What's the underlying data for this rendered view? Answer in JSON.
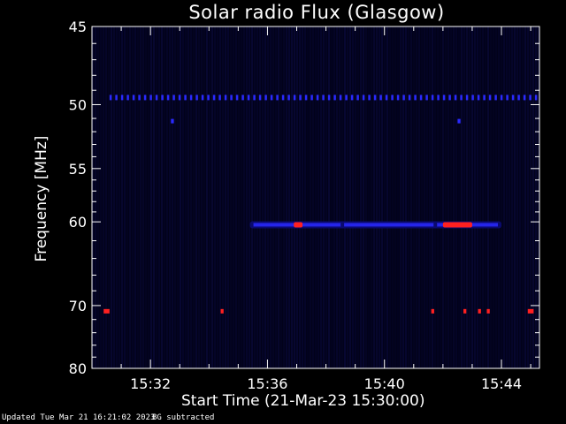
{
  "chart_data": {
    "type": "heatmap",
    "title": "Solar radio Flux (Glasgow)",
    "ylabel": "Frequency [MHz]",
    "xlabel": "Start Time (21-Mar-23 15:30:00)",
    "y_scale": "reciprocal",
    "ylim": [
      45,
      80
    ],
    "y_ticks": [
      "45",
      "50",
      "55",
      "60",
      "70",
      "80"
    ],
    "y_tick_values": [
      45,
      50,
      55,
      60,
      70,
      80
    ],
    "xlim_minutes": [
      0,
      15.3
    ],
    "x_ticks": [
      "15:32",
      "15:36",
      "15:40",
      "15:44"
    ],
    "x_tick_minutes": [
      2,
      6,
      10,
      14
    ],
    "colors": {
      "background": "#02021a",
      "low": "#0a0a6e",
      "medium": "#2a2aff",
      "high": "#ff2020"
    },
    "features": [
      {
        "kind": "band",
        "freq_mhz": 49.5,
        "start_min": 0.6,
        "end_min": 15.2,
        "intensity": "medium"
      },
      {
        "kind": "band",
        "freq_mhz": 60.3,
        "start_min": 5.4,
        "end_min": 14.0,
        "intensity": "medium"
      },
      {
        "kind": "band",
        "freq_mhz": 60.3,
        "start_min": 8.5,
        "end_min": 11.8,
        "intensity": "medium"
      },
      {
        "kind": "burst",
        "freq_mhz": 60.3,
        "start_min": 6.9,
        "end_min": 7.2,
        "intensity": "high"
      },
      {
        "kind": "burst",
        "freq_mhz": 60.3,
        "start_min": 12.0,
        "end_min": 13.0,
        "intensity": "high"
      },
      {
        "kind": "spot",
        "freq_mhz": 51.2,
        "start_min": 2.7,
        "end_min": 2.8,
        "intensity": "medium"
      },
      {
        "kind": "spot",
        "freq_mhz": 51.2,
        "start_min": 12.5,
        "end_min": 12.6,
        "intensity": "medium"
      },
      {
        "kind": "spot",
        "freq_mhz": 70.8,
        "start_min": 0.4,
        "end_min": 0.6,
        "intensity": "high"
      },
      {
        "kind": "spot",
        "freq_mhz": 70.8,
        "start_min": 4.4,
        "end_min": 4.5,
        "intensity": "high"
      },
      {
        "kind": "spot",
        "freq_mhz": 70.8,
        "start_min": 11.6,
        "end_min": 11.7,
        "intensity": "high"
      },
      {
        "kind": "spot",
        "freq_mhz": 70.8,
        "start_min": 12.7,
        "end_min": 12.8,
        "intensity": "high"
      },
      {
        "kind": "spot",
        "freq_mhz": 70.8,
        "start_min": 13.2,
        "end_min": 13.3,
        "intensity": "high"
      },
      {
        "kind": "spot",
        "freq_mhz": 70.8,
        "start_min": 13.5,
        "end_min": 13.6,
        "intensity": "high"
      },
      {
        "kind": "spot",
        "freq_mhz": 70.8,
        "start_min": 14.9,
        "end_min": 15.1,
        "intensity": "high"
      }
    ]
  },
  "footer": {
    "updated": "Updated Tue Mar 21 16:21:02 2023",
    "note": "BG subtracted"
  }
}
